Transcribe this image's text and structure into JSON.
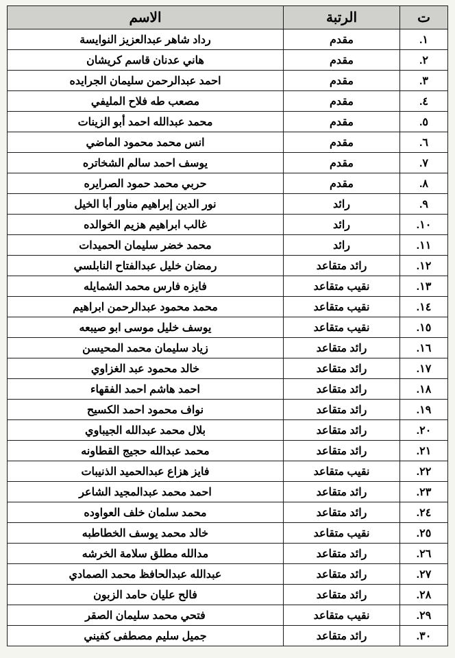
{
  "table": {
    "columns": [
      "ت",
      "الرتبة",
      "الاسم"
    ],
    "header_bg": "#d0d0cc",
    "border_color": "#1a1a1a",
    "text_color": "#000000",
    "background_color": "#ffffff",
    "font_weight": "bold",
    "header_fontsize": 20,
    "cell_fontsize": 16,
    "col_widths": {
      "seq": 70,
      "rank": 170,
      "name": "auto"
    },
    "rows": [
      {
        "seq": ".١",
        "rank": "مقدم",
        "name": "رداد شاهر عبدالعزيز النوايسة"
      },
      {
        "seq": ".٢",
        "rank": "مقدم",
        "name": "هاني عدنان قاسم كريشان"
      },
      {
        "seq": ".٣",
        "rank": "مقدم",
        "name": "احمد عبدالرحمن سليمان الجرايده"
      },
      {
        "seq": ".٤",
        "rank": "مقدم",
        "name": "مصعب طه فلاح المليفي"
      },
      {
        "seq": ".٥",
        "rank": "مقدم",
        "name": "محمد عبدالله احمد أبو الزينات"
      },
      {
        "seq": ".٦",
        "rank": "مقدم",
        "name": "انس محمد محمود الماضي"
      },
      {
        "seq": ".٧",
        "rank": "مقدم",
        "name": "يوسف احمد سالم الشخاتره"
      },
      {
        "seq": ".٨",
        "rank": "مقدم",
        "name": "حربي محمد حمود الصرايره"
      },
      {
        "seq": ".٩",
        "rank": "رائد",
        "name": "نور الدين إبراهيم مناور أبا الخيل"
      },
      {
        "seq": ".١٠",
        "rank": "رائد",
        "name": "غالب ابراهيم هزيم الخوالده"
      },
      {
        "seq": ".١١",
        "rank": "رائد",
        "name": "محمد خضر سليمان الحميدات"
      },
      {
        "seq": ".١٢",
        "rank": "رائد متقاعد",
        "name": "رمضان خليل عبدالفتاح النابلسي"
      },
      {
        "seq": ".١٣",
        "rank": "نقيب متقاعد",
        "name": "فايزه فارس محمد الشمايله"
      },
      {
        "seq": ".١٤",
        "rank": "نقيب متقاعد",
        "name": "محمد محمود عبدالرحمن ابراهيم"
      },
      {
        "seq": ".١٥",
        "rank": "نقيب متقاعد",
        "name": "يوسف خليل موسى ابو صيبعه"
      },
      {
        "seq": ".١٦",
        "rank": "رائد متقاعد",
        "name": "زياد سليمان محمد المحيسن"
      },
      {
        "seq": ".١٧",
        "rank": "رائد متقاعد",
        "name": "خالد محمود عبد الغزاوي"
      },
      {
        "seq": ".١٨",
        "rank": "رائد متقاعد",
        "name": "احمد هاشم احمد الفقهاء"
      },
      {
        "seq": ".١٩",
        "rank": "رائد متقاعد",
        "name": "نواف محمود احمد الكسيح"
      },
      {
        "seq": ".٢٠",
        "rank": "رائد متقاعد",
        "name": "بلال محمد عبدالله الجيباوي"
      },
      {
        "seq": ".٢١",
        "rank": "رائد متقاعد",
        "name": "محمد عبدالله حجيج القطاونه"
      },
      {
        "seq": ".٢٢",
        "rank": "نقيب متقاعد",
        "name": "فايز هزاع عبدالحميد الذنيبات"
      },
      {
        "seq": ".٢٣",
        "rank": "رائد متقاعد",
        "name": "احمد محمد عبدالمجيد الشاعر"
      },
      {
        "seq": ".٢٤",
        "rank": "رائد متقاعد",
        "name": "محمد سلمان خلف العواوده"
      },
      {
        "seq": ".٢٥",
        "rank": "نقيب متقاعد",
        "name": "خالد محمد يوسف الخطاطبه"
      },
      {
        "seq": ".٢٦",
        "rank": "رائد متقاعد",
        "name": "مدالله مطلق سلامة الخرشه"
      },
      {
        "seq": ".٢٧",
        "rank": "رائد متقاعد",
        "name": "عبدالله عبدالحافظ محمد الصمادي"
      },
      {
        "seq": ".٢٨",
        "rank": "رائد متقاعد",
        "name": "فالح عليان حامد الزبون"
      },
      {
        "seq": ".٢٩",
        "rank": "نقيب متقاعد",
        "name": "فتحي محمد سليمان الصقر"
      },
      {
        "seq": ".٣٠",
        "rank": "رائد متقاعد",
        "name": "جميل سليم مصطفى كفيني"
      }
    ]
  }
}
